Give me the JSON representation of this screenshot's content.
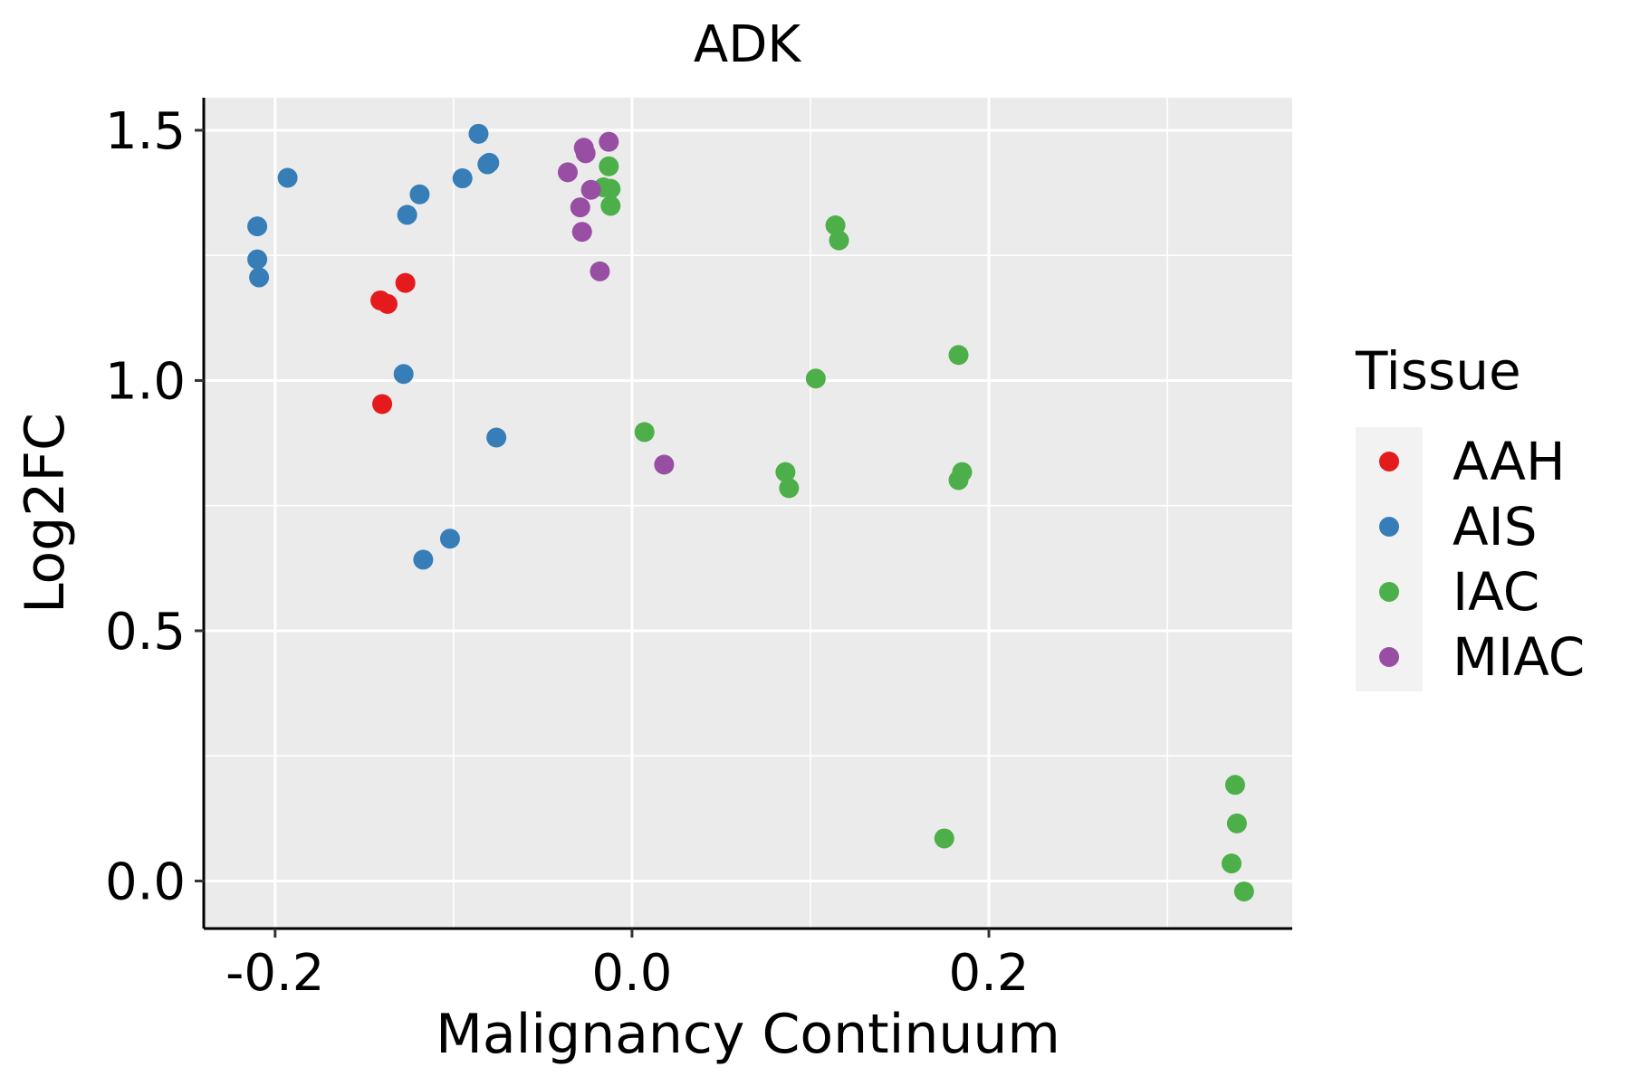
{
  "chart_data": {
    "type": "scatter",
    "title": "ADK",
    "xlabel": "Malignancy Continuum",
    "ylabel": "Log2FC",
    "xlim": [
      -0.24,
      0.37
    ],
    "ylim": [
      -0.095,
      1.565
    ],
    "x_ticks": [
      {
        "value": -0.2,
        "label": "-0.2"
      },
      {
        "value": 0.0,
        "label": "0.0"
      },
      {
        "value": 0.2,
        "label": "0.2"
      }
    ],
    "x_minor": [
      -0.1,
      0.1,
      0.3
    ],
    "y_ticks": [
      {
        "value": 0.0,
        "label": "0.0"
      },
      {
        "value": 0.5,
        "label": "0.5"
      },
      {
        "value": 1.0,
        "label": "1.0"
      },
      {
        "value": 1.5,
        "label": "1.5"
      }
    ],
    "y_minor": [
      0.25,
      0.75,
      1.25
    ],
    "grid": true,
    "panel_background": "#EBEBEB",
    "legend": {
      "title": "Tissue",
      "position": "right"
    },
    "series": [
      {
        "name": "AAH",
        "color": "#E41A1C",
        "points": [
          [
            -0.141,
            1.16
          ],
          [
            -0.137,
            1.153
          ],
          [
            -0.127,
            1.195
          ],
          [
            -0.14,
            0.953
          ]
        ]
      },
      {
        "name": "AIS",
        "color": "#377EB8",
        "points": [
          [
            -0.21,
            1.308
          ],
          [
            -0.21,
            1.242
          ],
          [
            -0.209,
            1.206
          ],
          [
            -0.193,
            1.405
          ],
          [
            -0.126,
            1.331
          ],
          [
            -0.119,
            1.372
          ],
          [
            -0.128,
            1.013
          ],
          [
            -0.117,
            0.642
          ],
          [
            -0.102,
            0.684
          ],
          [
            -0.095,
            1.404
          ],
          [
            -0.086,
            1.493
          ],
          [
            -0.081,
            1.432
          ],
          [
            -0.08,
            1.435
          ],
          [
            -0.076,
            0.886
          ]
        ]
      },
      {
        "name": "IAC",
        "color": "#4DAF4A",
        "points": [
          [
            -0.013,
            1.428
          ],
          [
            -0.016,
            1.386
          ],
          [
            -0.012,
            1.383
          ],
          [
            -0.012,
            1.349
          ],
          [
            0.007,
            0.897
          ],
          [
            0.086,
            0.817
          ],
          [
            0.088,
            0.785
          ],
          [
            0.103,
            1.004
          ],
          [
            0.114,
            1.31
          ],
          [
            0.116,
            1.28
          ],
          [
            0.175,
            0.085
          ],
          [
            0.183,
            1.051
          ],
          [
            0.183,
            0.801
          ],
          [
            0.185,
            0.817
          ],
          [
            0.336,
            0.035
          ],
          [
            0.338,
            0.192
          ],
          [
            0.339,
            0.115
          ],
          [
            0.343,
            -0.021
          ]
        ]
      },
      {
        "name": "MIAC",
        "color": "#984EA3",
        "points": [
          [
            -0.036,
            1.416
          ],
          [
            -0.027,
            1.465
          ],
          [
            -0.026,
            1.454
          ],
          [
            -0.023,
            1.381
          ],
          [
            -0.029,
            1.346
          ],
          [
            -0.028,
            1.297
          ],
          [
            -0.018,
            1.218
          ],
          [
            -0.013,
            1.477
          ],
          [
            0.018,
            0.832
          ]
        ]
      }
    ]
  }
}
